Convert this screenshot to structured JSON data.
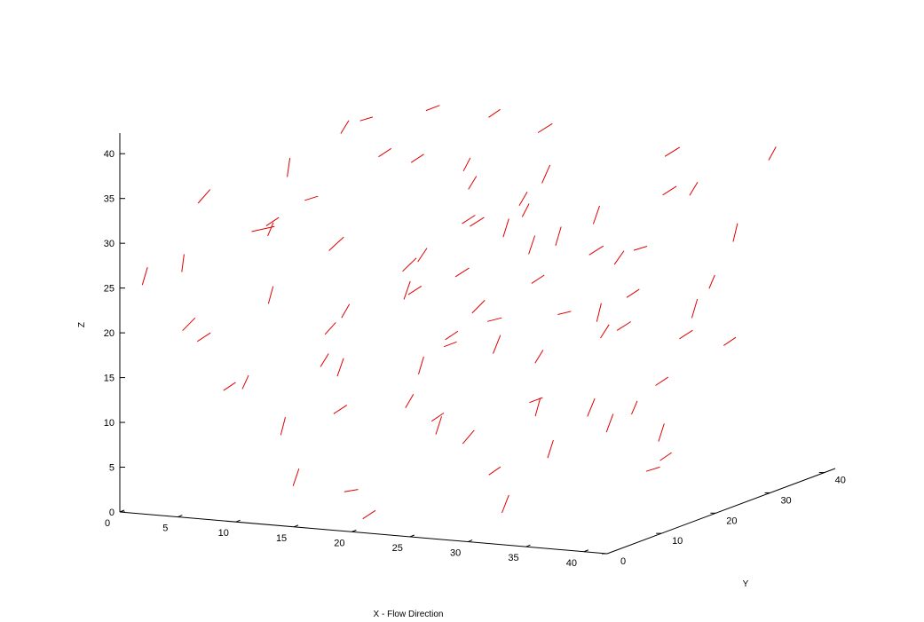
{
  "chart_data": {
    "type": "3d-line-segments",
    "series": [
      {
        "name": "",
        "color": "#e00000"
      }
    ],
    "axes": {
      "x": {
        "label": "X - Flow Direction",
        "range": [
          0,
          42
        ],
        "ticks": [
          0,
          5,
          10,
          15,
          20,
          25,
          30,
          35,
          40
        ]
      },
      "y": {
        "label": "Y",
        "range": [
          0,
          42
        ],
        "ticks": [
          0,
          10,
          20,
          30,
          40
        ]
      },
      "z": {
        "label": "Z",
        "range": [
          0,
          42
        ],
        "ticks": [
          0,
          5,
          10,
          15,
          20,
          25,
          30,
          35,
          40
        ]
      }
    },
    "grid": false,
    "segments": [
      [
        [
          1,
          2,
          25
        ],
        [
          1.4,
          2.1,
          27
        ]
      ],
      [
        [
          3,
          5,
          26
        ],
        [
          3.2,
          5,
          28
        ]
      ],
      [
        [
          2,
          20,
          27
        ],
        [
          3.5,
          21,
          27.5
        ]
      ],
      [
        [
          4,
          3,
          20
        ],
        [
          5,
          3.2,
          21.5
        ]
      ],
      [
        [
          3,
          8,
          33
        ],
        [
          3.8,
          8.5,
          34.5
        ]
      ],
      [
        [
          5,
          30,
          36
        ],
        [
          5.6,
          30.2,
          37.5
        ]
      ],
      [
        [
          6,
          18,
          34
        ],
        [
          6,
          18.5,
          36
        ]
      ],
      [
        [
          7,
          12,
          30
        ],
        [
          8,
          12.2,
          31
        ]
      ],
      [
        [
          8,
          2,
          14
        ],
        [
          9,
          2.1,
          15
        ]
      ],
      [
        [
          9,
          25,
          39
        ],
        [
          10,
          25.2,
          39.5
        ]
      ],
      [
        [
          10,
          6,
          23
        ],
        [
          10.4,
          6,
          25
        ]
      ],
      [
        [
          10,
          35,
          38
        ],
        [
          11,
          35.4,
          38.6
        ]
      ],
      [
        [
          11,
          15,
          27
        ],
        [
          12,
          15.6,
          28.5
        ]
      ],
      [
        [
          12,
          4,
          9
        ],
        [
          12.3,
          4.2,
          11
        ]
      ],
      [
        [
          12,
          28,
          34
        ],
        [
          13,
          28.2,
          35
        ]
      ],
      [
        [
          13,
          10,
          19
        ],
        [
          13.7,
          10.5,
          20.3
        ]
      ],
      [
        [
          14,
          2,
          4
        ],
        [
          14.5,
          2,
          6
        ]
      ],
      [
        [
          14,
          38,
          37
        ],
        [
          15,
          38,
          38
        ]
      ],
      [
        [
          15,
          20,
          24
        ],
        [
          16,
          20.4,
          25.5
        ]
      ],
      [
        [
          15,
          8,
          15
        ],
        [
          15.4,
          8.3,
          17
        ]
      ],
      [
        [
          16,
          30,
          31
        ],
        [
          16.6,
          30.2,
          32.5
        ]
      ],
      [
        [
          17,
          5,
          3
        ],
        [
          18.2,
          5,
          3.4
        ]
      ],
      [
        [
          17,
          16,
          22
        ],
        [
          17.4,
          16.3,
          24
        ]
      ],
      [
        [
          18,
          26,
          28
        ],
        [
          19,
          26.5,
          29
        ]
      ],
      [
        [
          19,
          12,
          11
        ],
        [
          19.5,
          12.4,
          12.5
        ]
      ],
      [
        [
          20,
          2,
          1
        ],
        [
          21,
          2.2,
          2
        ]
      ],
      [
        [
          20,
          35,
          31
        ],
        [
          20.5,
          35.4,
          33
        ]
      ],
      [
        [
          21,
          20,
          20
        ],
        [
          22,
          20.2,
          21.5
        ]
      ],
      [
        [
          22,
          8,
          16
        ],
        [
          22.4,
          8.1,
          18
        ]
      ],
      [
        [
          22,
          30,
          38
        ],
        [
          23,
          30.5,
          39
        ]
      ],
      [
        [
          23,
          14,
          7
        ],
        [
          23.8,
          14.4,
          8.5
        ]
      ],
      [
        [
          24,
          24,
          26
        ],
        [
          24.3,
          24.5,
          28
        ]
      ],
      [
        [
          25,
          4,
          12
        ],
        [
          26,
          4.1,
          13
        ]
      ],
      [
        [
          25,
          33,
          24
        ],
        [
          26,
          33.5,
          25
        ]
      ],
      [
        [
          26,
          18,
          33
        ],
        [
          26.5,
          18.4,
          34.5
        ]
      ],
      [
        [
          27,
          10,
          22
        ],
        [
          28,
          10.5,
          22.4
        ]
      ],
      [
        [
          28,
          28,
          18
        ],
        [
          28.2,
          28.4,
          20
        ]
      ],
      [
        [
          29,
          6,
          6
        ],
        [
          30,
          6,
          7
        ]
      ],
      [
        [
          29,
          38,
          30
        ],
        [
          30,
          38.4,
          31
        ]
      ],
      [
        [
          30,
          22,
          9
        ],
        [
          30.5,
          22.3,
          11
        ]
      ],
      [
        [
          31,
          14,
          30
        ],
        [
          31.2,
          14.6,
          32
        ]
      ],
      [
        [
          32,
          2,
          3
        ],
        [
          32.5,
          2.2,
          5
        ]
      ],
      [
        [
          32,
          32,
          36
        ],
        [
          33,
          32.6,
          37
        ]
      ],
      [
        [
          33,
          18,
          19
        ],
        [
          33.6,
          18.3,
          20.5
        ]
      ],
      [
        [
          34,
          8,
          24
        ],
        [
          35,
          8.3,
          24.4
        ]
      ],
      [
        [
          34,
          26,
          12
        ],
        [
          35,
          26.2,
          13
        ]
      ],
      [
        [
          35,
          4,
          9
        ],
        [
          35.4,
          4.2,
          11
        ]
      ],
      [
        [
          36,
          36,
          26
        ],
        [
          36.2,
          36.4,
          28
        ]
      ],
      [
        [
          36,
          20,
          4
        ],
        [
          37,
          20.4,
          4.5
        ]
      ],
      [
        [
          37,
          12,
          29
        ],
        [
          37.6,
          12.5,
          30.5
        ]
      ],
      [
        [
          38,
          30,
          16
        ],
        [
          39,
          30.1,
          17
        ]
      ],
      [
        [
          38,
          6,
          35
        ],
        [
          38.4,
          6.3,
          37
        ]
      ],
      [
        [
          39,
          22,
          21
        ],
        [
          39.2,
          22.6,
          23
        ]
      ],
      [
        [
          40,
          14,
          7
        ],
        [
          41,
          14,
          8
        ]
      ],
      [
        [
          40,
          34,
          36
        ],
        [
          40.5,
          34.3,
          37.5
        ]
      ],
      [
        [
          41,
          2,
          13
        ],
        [
          41.4,
          2.4,
          15
        ]
      ],
      [
        [
          8,
          36,
          17
        ],
        [
          9,
          36.3,
          18
        ]
      ],
      [
        [
          18,
          38,
          10
        ],
        [
          18.6,
          38.2,
          11.5
        ]
      ],
      [
        [
          26,
          36,
          15
        ],
        [
          27,
          36.4,
          16
        ]
      ],
      [
        [
          33,
          38,
          20
        ],
        [
          33.4,
          38.2,
          21.5
        ]
      ],
      [
        [
          12,
          22,
          36
        ],
        [
          13,
          22.2,
          37
        ]
      ],
      [
        [
          24,
          12,
          38
        ],
        [
          24.5,
          12.2,
          39.5
        ]
      ],
      [
        [
          6,
          28,
          16
        ],
        [
          6.5,
          28.4,
          17.5
        ]
      ],
      [
        [
          14,
          30,
          14
        ],
        [
          15,
          30.2,
          15
        ]
      ],
      [
        [
          20,
          26,
          14
        ],
        [
          20.4,
          26.5,
          16
        ]
      ],
      [
        [
          28,
          16,
          25
        ],
        [
          29,
          16.2,
          26
        ]
      ],
      [
        [
          36,
          28,
          33
        ],
        [
          36.6,
          28.2,
          34.5
        ]
      ],
      [
        [
          4,
          14,
          11
        ],
        [
          4.4,
          14.3,
          12.5
        ]
      ],
      [
        [
          10,
          18,
          8
        ],
        [
          11,
          18.3,
          9
        ]
      ],
      [
        [
          16,
          24,
          5
        ],
        [
          16.4,
          24.2,
          7
        ]
      ],
      [
        [
          22,
          16,
          31
        ],
        [
          23,
          16.3,
          32
        ]
      ],
      [
        [
          30,
          10,
          34
        ],
        [
          30.5,
          10.2,
          35.5
        ]
      ],
      [
        [
          34,
          22,
          28
        ],
        [
          35,
          22.3,
          28.5
        ]
      ],
      [
        [
          38,
          18,
          8
        ],
        [
          38.4,
          18.2,
          10
        ]
      ],
      [
        [
          2,
          10,
          17
        ],
        [
          3,
          10.3,
          18
        ]
      ],
      [
        [
          7,
          22,
          12
        ],
        [
          7.6,
          22.2,
          13.5
        ]
      ],
      [
        [
          13,
          34,
          20
        ],
        [
          14,
          34.4,
          21
        ]
      ],
      [
        [
          19,
          30,
          26
        ],
        [
          19.3,
          30.4,
          28
        ]
      ],
      [
        [
          25,
          22,
          10
        ],
        [
          26,
          22.3,
          10.6
        ]
      ],
      [
        [
          31,
          28,
          8
        ],
        [
          31.4,
          28.2,
          9.5
        ]
      ],
      [
        [
          37,
          24,
          18
        ],
        [
          38,
          24.3,
          19
        ]
      ],
      [
        [
          9,
          8,
          30
        ],
        [
          9.4,
          8.2,
          31.5
        ]
      ],
      [
        [
          15,
          2,
          36
        ],
        [
          16,
          2.3,
          36.5
        ]
      ],
      [
        [
          21,
          10,
          28
        ],
        [
          21.6,
          10.4,
          29.5
        ]
      ],
      [
        [
          27,
          2,
          21
        ],
        [
          28,
          2.2,
          21.6
        ]
      ],
      [
        [
          33,
          6,
          13
        ],
        [
          33.3,
          6.3,
          15
        ]
      ],
      [
        [
          39,
          10,
          26
        ],
        [
          40,
          10.2,
          27
        ]
      ]
    ]
  }
}
